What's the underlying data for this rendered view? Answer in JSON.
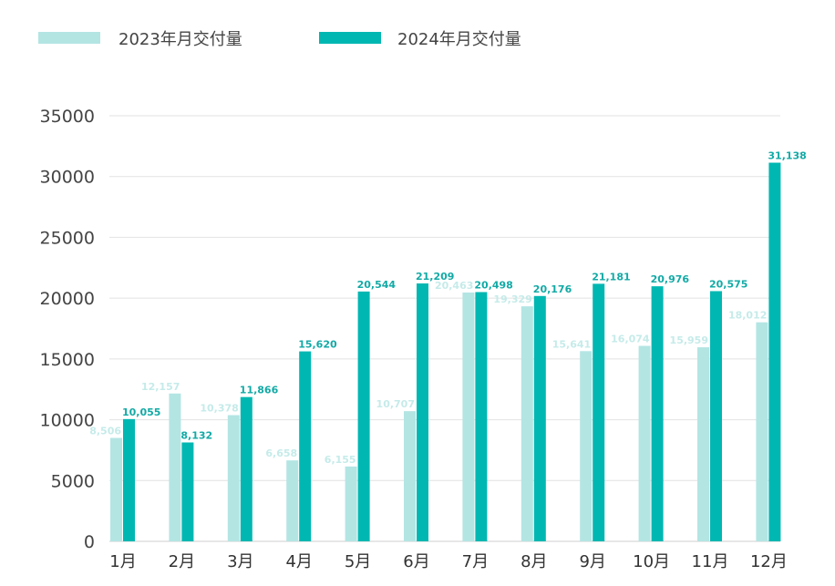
{
  "chart_data": {
    "type": "bar",
    "categories": [
      "1月",
      "2月",
      "3月",
      "4月",
      "5月",
      "6月",
      "7月",
      "8月",
      "9月",
      "10月",
      "11月",
      "12月"
    ],
    "series": [
      {
        "name": "2023年月交付量",
        "color": "#b3e5e3",
        "label_color": "#c5ebe9",
        "values": [
          8506,
          12157,
          10378,
          6658,
          6155,
          10707,
          20463,
          19329,
          15641,
          16074,
          15959,
          18012
        ],
        "labels": [
          "8,506",
          "12,157",
          "10,378",
          "6,658",
          "6,155",
          "10,707",
          "20,463",
          "19,329",
          "15,641",
          "16,074",
          "15,959",
          "18,012"
        ]
      },
      {
        "name": "2024年月交付量",
        "color": "#00b7b2",
        "label_color": "#12aaa6",
        "values": [
          10055,
          8132,
          11866,
          15620,
          20544,
          21209,
          20498,
          20176,
          21181,
          20976,
          20575,
          31138
        ],
        "labels": [
          "10,055",
          "8,132",
          "11,866",
          "15,620",
          "20,544",
          "21,209",
          "20,498",
          "20,176",
          "21,181",
          "20,976",
          "20,575",
          "31,138"
        ]
      }
    ],
    "yticks": [
      "0",
      "5000",
      "10000",
      "15000",
      "20000",
      "25000",
      "30000",
      "35000"
    ],
    "ylim": [
      0,
      35000
    ],
    "grid": true,
    "legend_position": "top-left"
  }
}
